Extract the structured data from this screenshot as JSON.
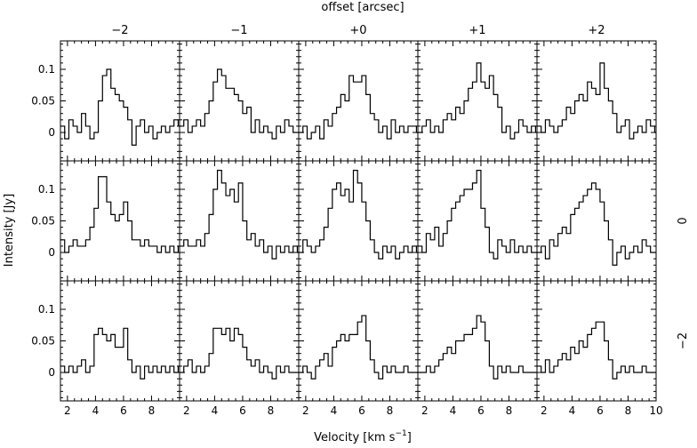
{
  "chart_data": {
    "type": "line",
    "title": "",
    "top_label": "offset [arcsec]",
    "xlabel": "Velocity [km s-1]",
    "xlabel_main": "Velocity [km s",
    "xlabel_sup": "−1",
    "xlabel_close": "]",
    "ylabel": "Intensity [Jy]",
    "xlim": [
      1.5,
      10
    ],
    "ylim": [
      -0.045,
      0.145
    ],
    "x_ticks": [
      2,
      4,
      6,
      8
    ],
    "x_ticks_last": [
      2,
      4,
      6,
      8,
      10
    ],
    "y_ticks": [
      0,
      0.05,
      0.1
    ],
    "y_tick_labels": [
      "0",
      "0.05",
      "0.1"
    ],
    "col_offsets": [
      "−2",
      "−1",
      "+0",
      "+1",
      "+2"
    ],
    "row_offsets": [
      "",
      "0",
      "−2"
    ],
    "channel_x": [
      1.5,
      1.8,
      2.1,
      2.4,
      2.7,
      3.0,
      3.3,
      3.6,
      3.9,
      4.2,
      4.5,
      4.8,
      5.1,
      5.4,
      5.7,
      6.0,
      6.3,
      6.6,
      6.9,
      7.2,
      7.5,
      7.8,
      8.1,
      8.4,
      8.7,
      9.0,
      9.3,
      9.6,
      9.9
    ],
    "panels": [
      [
        {
          "row": 0,
          "col": 0,
          "values": [
            0.01,
            -0.01,
            0.02,
            0.01,
            0.0,
            0.03,
            0.01,
            -0.01,
            0.0,
            0.05,
            0.09,
            0.1,
            0.07,
            0.06,
            0.05,
            0.04,
            0.02,
            -0.02,
            0.01,
            0.02,
            0.0,
            0.01,
            -0.01,
            0.0,
            0.01,
            0.0,
            0.01,
            0.02,
            0.01
          ]
        },
        {
          "row": 0,
          "col": 1,
          "values": [
            0.01,
            0.02,
            0.0,
            0.01,
            0.02,
            0.01,
            0.03,
            0.05,
            0.08,
            0.1,
            0.09,
            0.07,
            0.07,
            0.06,
            0.05,
            0.03,
            0.04,
            0.0,
            0.02,
            0.0,
            0.01,
            0.0,
            -0.01,
            0.01,
            0.0,
            0.02,
            0.01,
            0.0,
            0.0
          ]
        },
        {
          "row": 0,
          "col": 2,
          "values": [
            0.0,
            0.01,
            -0.01,
            0.0,
            0.01,
            -0.01,
            0.02,
            0.01,
            0.03,
            0.04,
            0.06,
            0.05,
            0.09,
            0.08,
            0.08,
            0.09,
            0.06,
            0.03,
            0.02,
            0.0,
            0.01,
            -0.01,
            0.02,
            0.0,
            0.01,
            0.0,
            0.01,
            0.01,
            0.0
          ]
        },
        {
          "row": 0,
          "col": 3,
          "values": [
            0.0,
            0.01,
            0.02,
            0.0,
            0.01,
            0.0,
            0.02,
            0.03,
            0.02,
            0.04,
            0.03,
            0.05,
            0.07,
            0.08,
            0.11,
            0.08,
            0.07,
            0.09,
            0.06,
            0.04,
            0.0,
            0.01,
            -0.01,
            0.0,
            0.02,
            0.01,
            0.0,
            0.01,
            0.0
          ]
        },
        {
          "row": 0,
          "col": 4,
          "values": [
            0.01,
            0.0,
            0.02,
            0.01,
            0.0,
            0.01,
            0.02,
            0.04,
            0.03,
            0.05,
            0.06,
            0.05,
            0.08,
            0.07,
            0.06,
            0.11,
            0.07,
            0.05,
            0.03,
            0.0,
            0.01,
            0.02,
            -0.01,
            0.0,
            0.01,
            0.0,
            0.02,
            0.01,
            0.0
          ]
        }
      ],
      [
        {
          "row": 1,
          "col": 0,
          "values": [
            0.02,
            0.0,
            0.01,
            0.02,
            0.01,
            0.01,
            0.02,
            0.04,
            0.07,
            0.12,
            0.12,
            0.08,
            0.06,
            0.05,
            0.06,
            0.08,
            0.05,
            0.02,
            0.02,
            0.01,
            0.02,
            0.01,
            0.01,
            0.0,
            0.01,
            0.0,
            0.01,
            0.0,
            0.01
          ]
        },
        {
          "row": 1,
          "col": 1,
          "values": [
            0.01,
            0.02,
            0.01,
            0.01,
            0.02,
            0.01,
            0.03,
            0.06,
            0.1,
            0.13,
            0.11,
            0.09,
            0.1,
            0.08,
            0.11,
            0.05,
            0.02,
            0.03,
            0.01,
            0.02,
            0.0,
            0.01,
            -0.01,
            0.01,
            0.0,
            0.01,
            0.0,
            0.01,
            0.0
          ]
        },
        {
          "row": 1,
          "col": 2,
          "values": [
            0.0,
            0.02,
            0.01,
            0.0,
            0.01,
            0.02,
            0.04,
            0.07,
            0.1,
            0.11,
            0.09,
            0.1,
            0.08,
            0.13,
            0.11,
            0.08,
            0.05,
            0.02,
            0.0,
            -0.01,
            0.01,
            0.0,
            0.01,
            -0.01,
            0.0,
            0.01,
            0.0,
            0.01,
            0.0
          ]
        },
        {
          "row": 1,
          "col": 3,
          "values": [
            0.01,
            0.0,
            0.03,
            0.02,
            0.04,
            0.01,
            0.03,
            0.05,
            0.07,
            0.08,
            0.09,
            0.1,
            0.1,
            0.11,
            0.13,
            0.07,
            0.04,
            0.0,
            -0.01,
            0.02,
            0.01,
            0.0,
            0.02,
            0.0,
            0.01,
            0.0,
            0.01,
            0.0,
            0.0
          ]
        },
        {
          "row": 1,
          "col": 4,
          "values": [
            0.0,
            0.01,
            -0.01,
            0.02,
            0.01,
            0.03,
            0.04,
            0.03,
            0.06,
            0.07,
            0.08,
            0.09,
            0.1,
            0.11,
            0.1,
            0.08,
            0.05,
            0.02,
            -0.02,
            0.0,
            0.01,
            -0.01,
            0.0,
            0.01,
            0.0,
            0.02,
            0.01,
            0.0,
            0.0
          ]
        }
      ],
      [
        {
          "row": 2,
          "col": 0,
          "values": [
            0.01,
            0.0,
            0.01,
            0.0,
            0.01,
            0.02,
            0.0,
            0.01,
            0.06,
            0.07,
            0.06,
            0.05,
            0.06,
            0.04,
            0.04,
            0.07,
            0.02,
            0.0,
            0.01,
            -0.01,
            0.01,
            0.0,
            0.01,
            0.0,
            0.01,
            0.0,
            0.01,
            0.0,
            0.01
          ]
        },
        {
          "row": 2,
          "col": 1,
          "values": [
            0.0,
            0.01,
            0.02,
            0.0,
            0.01,
            0.0,
            0.01,
            0.03,
            0.07,
            0.07,
            0.06,
            0.07,
            0.05,
            0.07,
            0.06,
            0.04,
            0.02,
            0.01,
            0.02,
            0.0,
            0.01,
            0.0,
            -0.01,
            0.01,
            0.0,
            0.01,
            0.0,
            0.0,
            0.0
          ]
        },
        {
          "row": 2,
          "col": 2,
          "values": [
            0.0,
            0.01,
            0.0,
            -0.01,
            0.01,
            0.02,
            0.03,
            0.01,
            0.04,
            0.05,
            0.06,
            0.05,
            0.06,
            0.06,
            0.08,
            0.09,
            0.05,
            0.02,
            0.0,
            -0.01,
            0.01,
            0.0,
            0.01,
            0.0,
            0.0,
            0.01,
            0.0,
            0.0,
            0.0
          ]
        },
        {
          "row": 2,
          "col": 3,
          "values": [
            0.0,
            0.0,
            0.01,
            0.0,
            0.01,
            0.02,
            0.03,
            0.04,
            0.03,
            0.05,
            0.05,
            0.06,
            0.06,
            0.07,
            0.09,
            0.08,
            0.05,
            0.01,
            -0.01,
            0.01,
            0.0,
            0.01,
            0.0,
            0.0,
            0.01,
            0.0,
            0.0,
            0.0,
            0.0
          ]
        },
        {
          "row": 2,
          "col": 4,
          "values": [
            0.01,
            0.0,
            0.02,
            0.0,
            0.01,
            0.02,
            0.03,
            0.02,
            0.04,
            0.03,
            0.05,
            0.04,
            0.06,
            0.07,
            0.08,
            0.08,
            0.05,
            0.02,
            -0.01,
            0.0,
            0.01,
            0.0,
            0.01,
            0.0,
            0.0,
            0.01,
            0.0,
            0.0,
            0.0
          ]
        }
      ]
    ]
  }
}
